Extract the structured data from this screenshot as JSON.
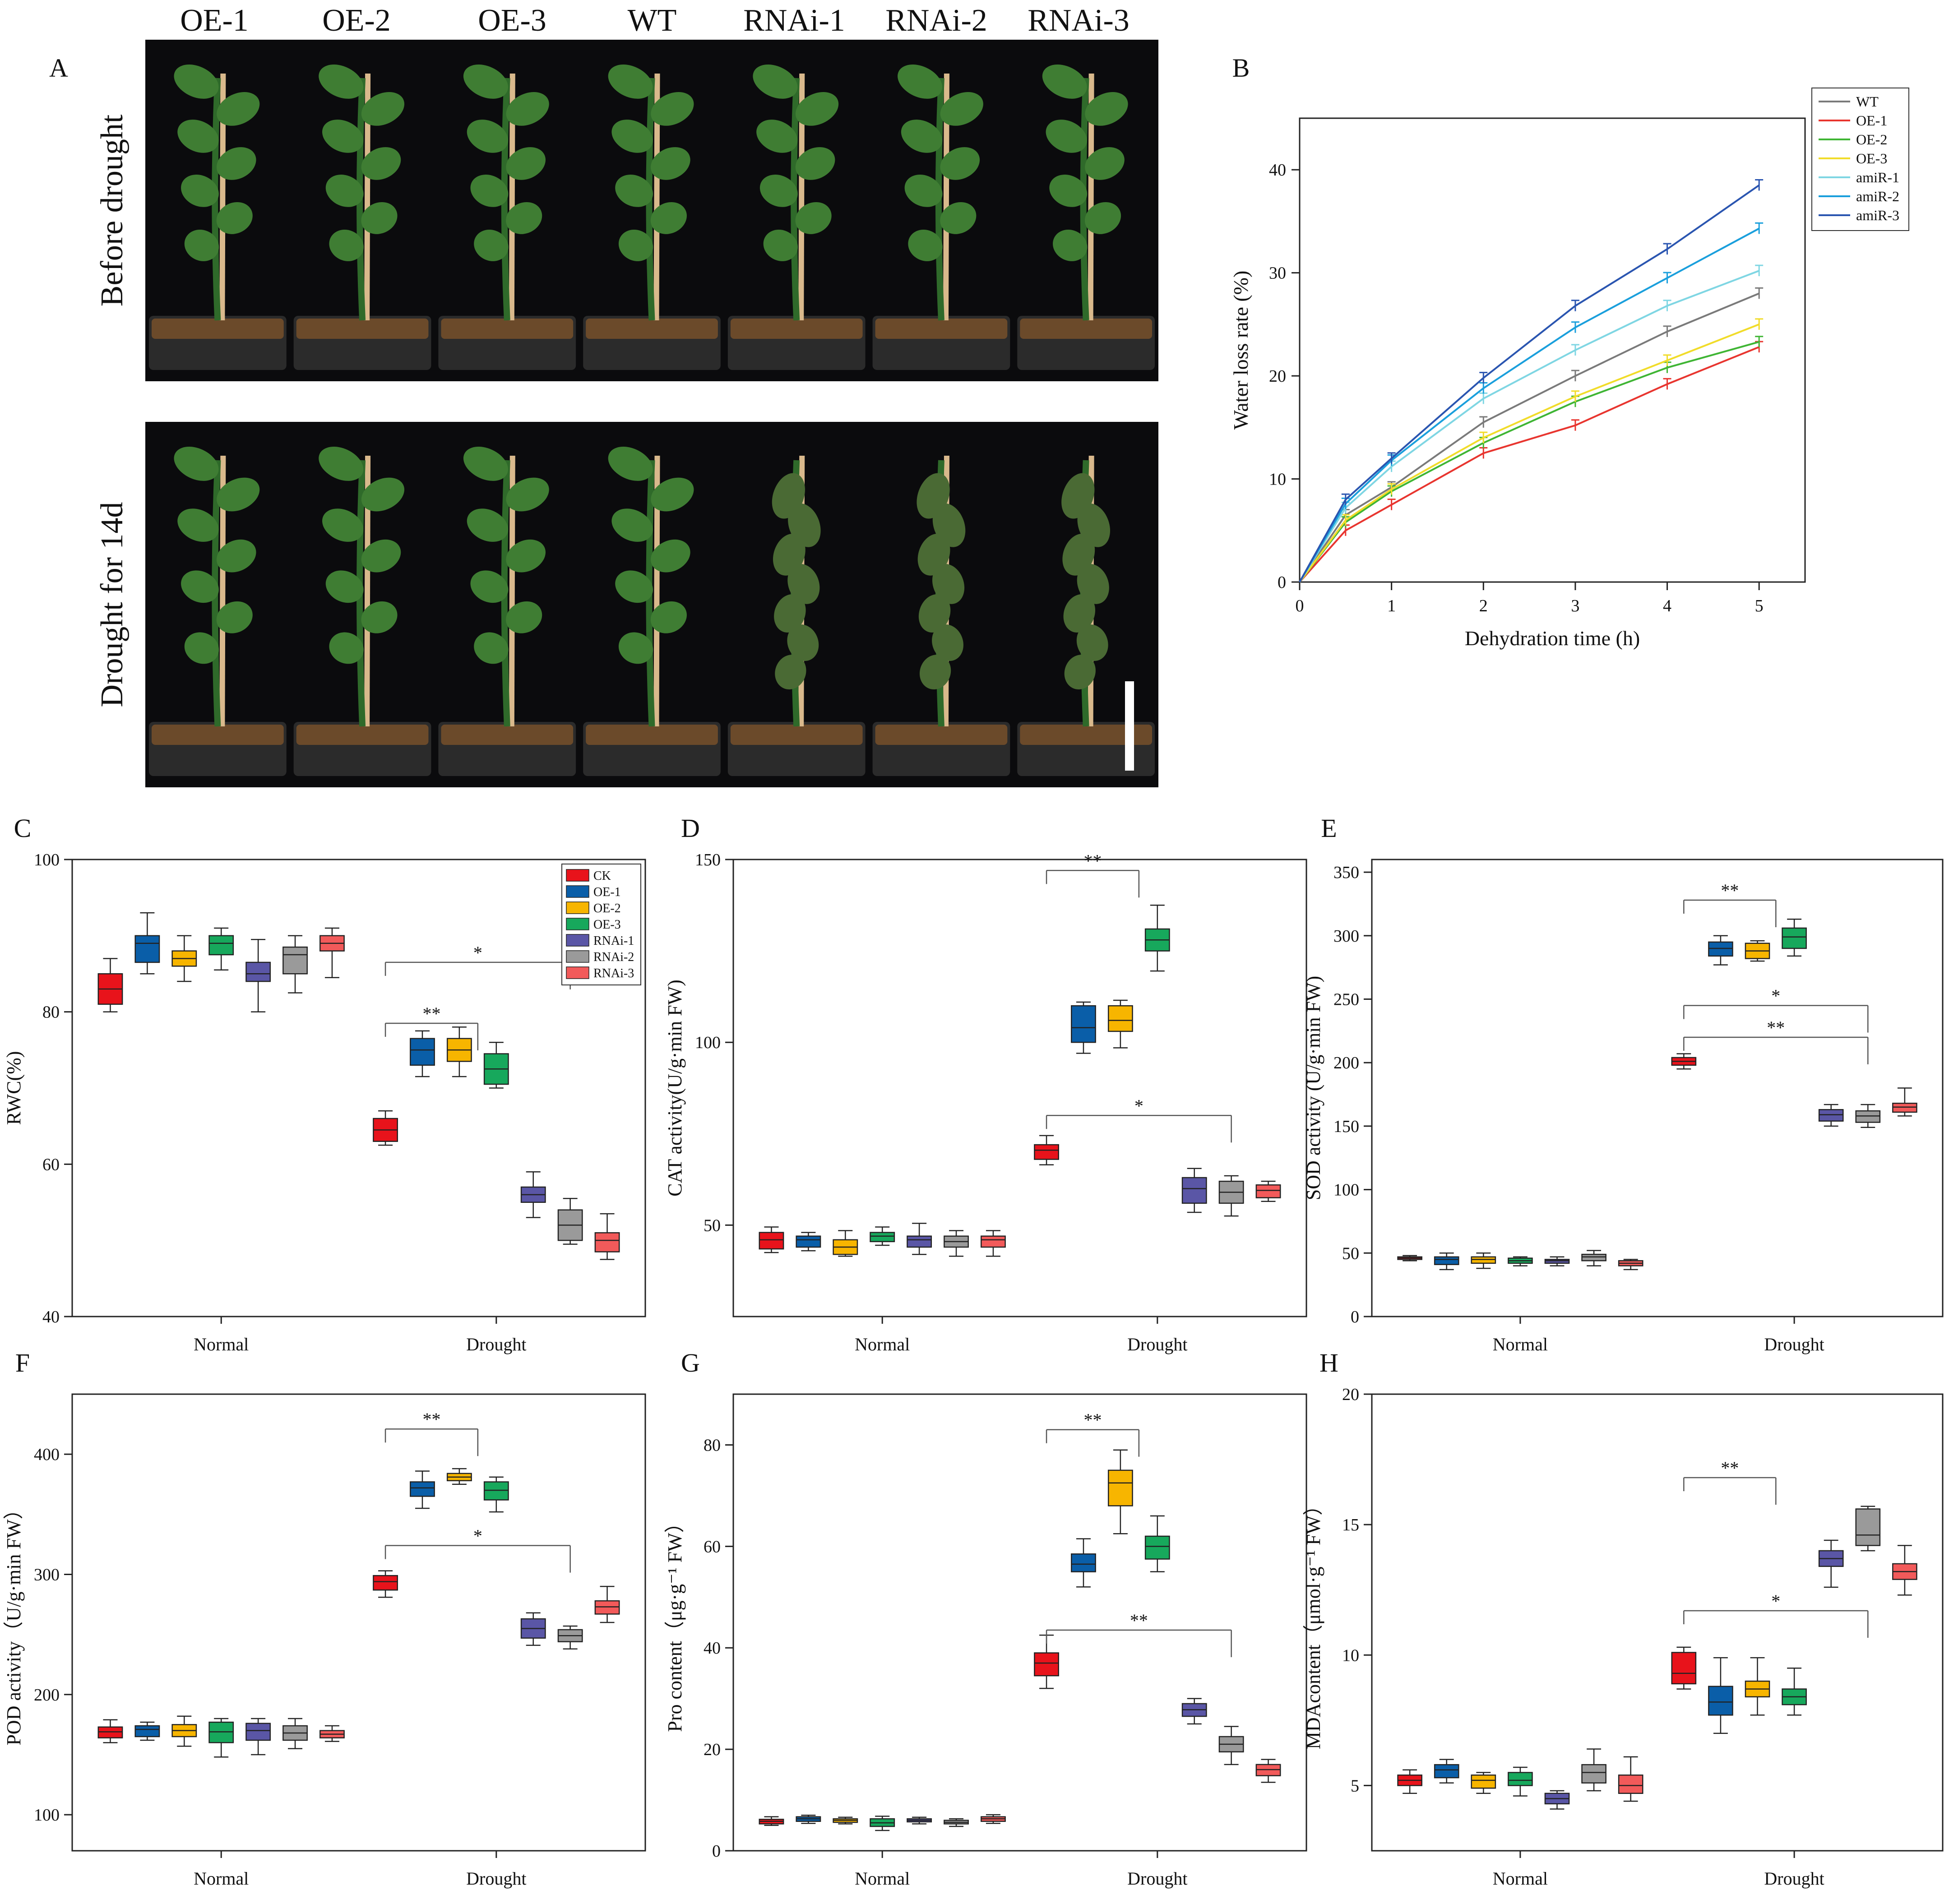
{
  "panel_a": {
    "letter": "A",
    "genotypes": [
      "OE-1",
      "OE-2",
      "OE-3",
      "WT",
      "RNAi-1",
      "RNAi-2",
      "RNAi-3"
    ],
    "rows": [
      "Before drought",
      "Drought for 14d"
    ],
    "photo_colors": {
      "background": "#0b0b0d",
      "stem": "#2f6a2a",
      "leaf": "#3f7d33",
      "soil": "#6b4a2a",
      "tray": "#2b2b2b",
      "stake": "#d9b98c"
    }
  },
  "chart_data": [
    {
      "panel": "B",
      "type": "line",
      "xlabel": "Dehydration time (h)",
      "ylabel": "Water loss rate (%)",
      "xlim": [
        0,
        5.5
      ],
      "ylim": [
        0,
        45
      ],
      "xticks": [
        0,
        1,
        2,
        3,
        4,
        5
      ],
      "yticks": [
        0,
        10,
        20,
        30,
        40
      ],
      "x": [
        0,
        0.5,
        1,
        2,
        3,
        4,
        5
      ],
      "series": [
        {
          "name": "WT",
          "color": "#7a7a7a",
          "values": [
            0,
            6.5,
            9.2,
            15.5,
            20,
            24.3,
            28
          ]
        },
        {
          "name": "OE-1",
          "color": "#e8352f",
          "values": [
            0,
            5,
            7.5,
            12.5,
            15.2,
            19.2,
            22.8
          ]
        },
        {
          "name": "OE-2",
          "color": "#3fb534",
          "values": [
            0,
            5.8,
            8.8,
            13.5,
            17.5,
            20.8,
            23.3
          ]
        },
        {
          "name": "OE-3",
          "color": "#f1dc2a",
          "values": [
            0,
            6,
            9,
            14,
            18,
            21.5,
            25
          ]
        },
        {
          "name": "amiR-1",
          "color": "#7fd6e3",
          "values": [
            0,
            7.2,
            11.2,
            17.8,
            22.5,
            26.8,
            30.2
          ]
        },
        {
          "name": "amiR-2",
          "color": "#1a9fdc",
          "values": [
            0,
            7.6,
            11.8,
            18.8,
            24.7,
            29.5,
            34.3
          ]
        },
        {
          "name": "amiR-3",
          "color": "#2a55b0",
          "values": [
            0,
            8,
            12,
            19.8,
            26.8,
            32.3,
            38.5
          ]
        }
      ],
      "legend_position": "top-right"
    },
    {
      "panel": "C",
      "type": "box",
      "ylabel": "RWC(%)",
      "ylim": [
        40,
        100
      ],
      "yticks": [
        40,
        60,
        80,
        100
      ],
      "categories": [
        "Normal",
        "Drought"
      ],
      "legend": [
        "CK",
        "OE-1",
        "OE-2",
        "OE-3",
        "RNAi-1",
        "RNAi-2",
        "RNAi-3"
      ],
      "legend_position": "top-right",
      "groups": [
        [
          [
            80,
            81,
            83,
            85,
            87
          ],
          [
            85,
            86.5,
            89,
            90,
            93
          ],
          [
            84,
            86,
            87,
            88,
            90
          ],
          [
            85.5,
            87.5,
            89,
            90,
            91
          ],
          [
            80,
            84,
            85,
            86.5,
            89.5
          ],
          [
            82.5,
            85,
            87.5,
            88.5,
            90
          ],
          [
            84.5,
            88,
            89,
            90,
            91
          ]
        ],
        [
          [
            62.5,
            63,
            64.5,
            66,
            67
          ],
          [
            71.5,
            73,
            75,
            76.5,
            77.5
          ],
          [
            71.5,
            73.5,
            75,
            76.5,
            78
          ],
          [
            70,
            70.5,
            72.5,
            74.5,
            76
          ],
          [
            53,
            55,
            56,
            57,
            59
          ],
          [
            49.5,
            50,
            52,
            54,
            55.5
          ],
          [
            47.5,
            48.5,
            50,
            51,
            53.5
          ]
        ]
      ],
      "annotations": [
        {
          "text": "**",
          "level": 78.5
        },
        {
          "text": "*",
          "level": 86.5
        }
      ]
    },
    {
      "panel": "D",
      "type": "box",
      "ylabel": "CAT activity(U/g·min FW)",
      "ylim": [
        25,
        150
      ],
      "yticks": [
        50,
        100,
        150
      ],
      "categories": [
        "Normal",
        "Drought"
      ],
      "groups": [
        [
          [
            42.5,
            43.5,
            46,
            48,
            49.5
          ],
          [
            43,
            44,
            46,
            47,
            48
          ],
          [
            41.5,
            42,
            44,
            46,
            48.5
          ],
          [
            44.5,
            45.5,
            47,
            48,
            49.5
          ],
          [
            42,
            44,
            46,
            47,
            50.5
          ],
          [
            41.5,
            44,
            45.5,
            47,
            48.5
          ],
          [
            41.5,
            44,
            46,
            47,
            48.5
          ]
        ],
        [
          [
            66.5,
            68,
            70.5,
            72,
            74.5
          ],
          [
            97,
            100,
            104,
            110,
            111
          ],
          [
            98.5,
            103,
            106,
            110,
            111.5
          ],
          [
            119.5,
            125,
            128,
            131,
            137.5
          ],
          [
            53.5,
            56,
            60,
            63,
            65.5
          ],
          [
            52.5,
            56,
            59,
            62,
            63.5
          ],
          [
            56.5,
            57.5,
            59.5,
            61,
            62
          ]
        ]
      ],
      "annotations": [
        {
          "text": "**",
          "level": 147
        },
        {
          "text": "*",
          "level": 80
        }
      ]
    },
    {
      "panel": "E",
      "type": "box",
      "ylabel": "SOD activity (U/g·min FW)",
      "ylim": [
        0,
        360
      ],
      "yticks": [
        0,
        50,
        100,
        150,
        200,
        250,
        300,
        350
      ],
      "categories": [
        "Normal",
        "Drought"
      ],
      "groups": [
        [
          [
            44,
            45,
            46,
            47,
            48
          ],
          [
            37,
            41,
            45,
            47,
            50
          ],
          [
            38,
            42,
            45,
            47,
            50
          ],
          [
            40,
            42,
            44,
            46,
            47
          ],
          [
            40,
            42,
            44,
            45,
            47
          ],
          [
            40,
            44,
            47,
            49,
            52
          ],
          [
            37,
            40,
            42,
            44,
            45
          ]
        ],
        [
          [
            195,
            198,
            201,
            204,
            207
          ],
          [
            277,
            284,
            290,
            295,
            300
          ],
          [
            280,
            282,
            288,
            294,
            296
          ],
          [
            284,
            290,
            299,
            306,
            313
          ],
          [
            150,
            154,
            159,
            163,
            167
          ],
          [
            149,
            153,
            158,
            162,
            167
          ],
          [
            158,
            161,
            165,
            168,
            180
          ]
        ]
      ],
      "annotations": [
        {
          "text": "**",
          "level": 328
        },
        {
          "text": "*",
          "level": 245
        },
        {
          "text": "**",
          "level": 220
        }
      ]
    },
    {
      "panel": "F",
      "type": "box",
      "ylabel": "POD activity（U/g·min FW）",
      "ylim": [
        70,
        450
      ],
      "yticks": [
        100,
        200,
        300,
        400
      ],
      "categories": [
        "Normal",
        "Drought"
      ],
      "groups": [
        [
          [
            160,
            164,
            169,
            173,
            179
          ],
          [
            162,
            165,
            171,
            174,
            177
          ],
          [
            157,
            165,
            170,
            175,
            182
          ],
          [
            148,
            160,
            169,
            177,
            180
          ],
          [
            150,
            162,
            170,
            176,
            180
          ],
          [
            155,
            162,
            168,
            174,
            180
          ],
          [
            161,
            164,
            167,
            170,
            174
          ]
        ],
        [
          [
            281,
            287,
            294,
            299,
            303
          ],
          [
            355,
            365,
            372,
            377,
            386
          ],
          [
            375,
            378,
            381,
            384,
            388
          ],
          [
            352,
            362,
            370,
            377,
            381
          ],
          [
            241,
            247,
            255,
            263,
            268
          ],
          [
            238,
            244,
            249,
            254,
            257
          ],
          [
            260,
            267,
            273,
            278,
            290
          ]
        ]
      ],
      "annotations": [
        {
          "text": "**",
          "level": 421
        },
        {
          "text": "*",
          "level": 324
        }
      ]
    },
    {
      "panel": "G",
      "type": "box",
      "ylabel": "Pro content（μg·g⁻¹ FW）",
      "ylim": [
        0,
        90
      ],
      "yticks": [
        0,
        20,
        40,
        60,
        80
      ],
      "categories": [
        "Normal",
        "Drought"
      ],
      "groups": [
        [
          [
            5,
            5.3,
            5.8,
            6.2,
            6.7
          ],
          [
            5.4,
            5.8,
            6.3,
            6.7,
            7
          ],
          [
            5.3,
            5.6,
            6,
            6.3,
            6.6
          ],
          [
            4,
            4.8,
            5.5,
            6.3,
            6.8
          ],
          [
            5.3,
            5.7,
            6,
            6.3,
            6.6
          ],
          [
            4.8,
            5.3,
            5.6,
            6,
            6.3
          ],
          [
            5.4,
            5.8,
            6.3,
            6.7,
            7.1
          ]
        ],
        [
          [
            32,
            34.5,
            37,
            39,
            42.5
          ],
          [
            52,
            55,
            56.5,
            58.5,
            61.5
          ],
          [
            62.5,
            68,
            72.5,
            75,
            79
          ],
          [
            55,
            57.5,
            60,
            62,
            66
          ],
          [
            25,
            26.5,
            27.8,
            29,
            30
          ],
          [
            17,
            19.5,
            21,
            22.5,
            24.5
          ],
          [
            13.5,
            14.8,
            16,
            17,
            18
          ]
        ]
      ],
      "annotations": [
        {
          "text": "**",
          "level": 83
        },
        {
          "text": "**",
          "level": 43.5
        }
      ]
    },
    {
      "panel": "H",
      "type": "box",
      "ylabel": "MDAcontent（μmol·g⁻¹ FW）",
      "ylim": [
        2.5,
        20
      ],
      "yticks": [
        5,
        10,
        15,
        20
      ],
      "categories": [
        "Normal",
        "Drought"
      ],
      "groups": [
        [
          [
            4.7,
            5,
            5.2,
            5.4,
            5.6
          ],
          [
            5.1,
            5.3,
            5.6,
            5.8,
            6
          ],
          [
            4.7,
            4.9,
            5.2,
            5.4,
            5.5
          ],
          [
            4.6,
            5,
            5.2,
            5.5,
            5.7
          ],
          [
            4.1,
            4.3,
            4.5,
            4.7,
            4.8
          ],
          [
            4.8,
            5.1,
            5.5,
            5.8,
            6.4
          ],
          [
            4.4,
            4.7,
            5,
            5.4,
            6.1
          ]
        ],
        [
          [
            8.7,
            8.9,
            9.3,
            10.1,
            10.3
          ],
          [
            7,
            7.7,
            8.2,
            8.8,
            9.9
          ],
          [
            7.7,
            8.4,
            8.7,
            9,
            9.9
          ],
          [
            7.7,
            8.1,
            8.4,
            8.7,
            9.5
          ],
          [
            12.6,
            13.4,
            13.7,
            14,
            14.4
          ],
          [
            14,
            14.2,
            14.6,
            15.6,
            15.7
          ],
          [
            12.3,
            12.9,
            13.2,
            13.5,
            14.2
          ]
        ]
      ],
      "annotations": [
        {
          "text": "**",
          "level": 16.8
        },
        {
          "text": "*",
          "level": 11.7
        }
      ]
    }
  ],
  "box_colors": [
    "#e8131b",
    "#0a5ea8",
    "#f7b500",
    "#17a85c",
    "#5a56a6",
    "#9a9a9a",
    "#f25a5a"
  ]
}
